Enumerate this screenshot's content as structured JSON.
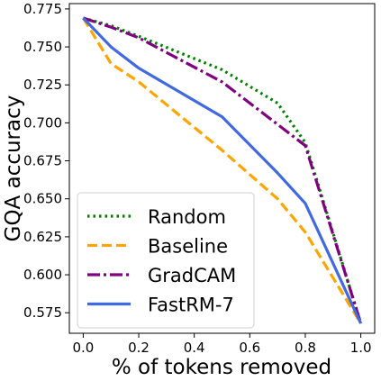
{
  "chart_data": {
    "type": "line",
    "xlabel": "% of tokens removed",
    "ylabel": "GQA accuracy",
    "xlim": [
      -0.05,
      1.05
    ],
    "ylim": [
      0.5615,
      0.7785
    ],
    "xticks": [
      0.0,
      0.2,
      0.4,
      0.6,
      0.8,
      1.0
    ],
    "xtick_labels": [
      "0.0",
      "0.2",
      "0.4",
      "0.6",
      "0.8",
      "1.0"
    ],
    "yticks": [
      0.575,
      0.6,
      0.625,
      0.65,
      0.675,
      0.7,
      0.725,
      0.75,
      0.775
    ],
    "ytick_labels": [
      "0.575",
      "0.600",
      "0.625",
      "0.650",
      "0.675",
      "0.700",
      "0.725",
      "0.750",
      "0.775"
    ],
    "grid": false,
    "legend": "lower-left",
    "x": [
      0.0,
      0.1,
      0.2,
      0.5,
      0.7,
      0.8,
      1.0
    ],
    "series": [
      {
        "name": "Random",
        "color": "#008000",
        "dash": "dotted",
        "values": [
          0.769,
          0.764,
          0.757,
          0.735,
          0.713,
          0.687,
          0.568
        ]
      },
      {
        "name": "Baseline",
        "color": "#ffa500",
        "dash": "dashed",
        "values": [
          0.769,
          0.739,
          0.727,
          0.682,
          0.65,
          0.628,
          0.568
        ]
      },
      {
        "name": "GradCAM",
        "color": "#800080",
        "dash": "dashdot",
        "values": [
          0.769,
          0.763,
          0.756,
          0.727,
          0.699,
          0.685,
          0.568
        ]
      },
      {
        "name": "FastRM-7",
        "color": "#4169e1",
        "dash": "solid",
        "values": [
          0.769,
          0.75,
          0.736,
          0.704,
          0.667,
          0.647,
          0.568
        ]
      }
    ]
  }
}
